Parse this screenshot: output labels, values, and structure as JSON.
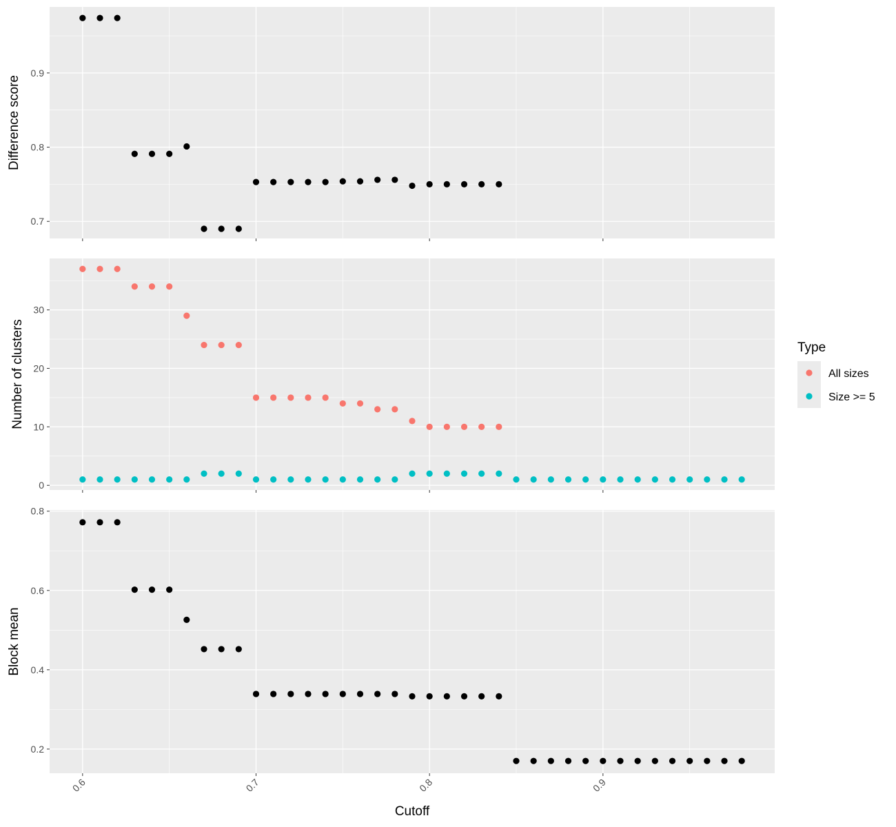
{
  "chart_data": [
    {
      "type": "scatter",
      "panel": "top",
      "ylabel": "Difference score",
      "xlim": [
        0.581,
        0.999
      ],
      "ylim": [
        0.677,
        0.989
      ],
      "yticks": [
        0.7,
        0.8,
        0.9
      ],
      "ytick_labels": [
        "0.7",
        "0.8",
        "0.9"
      ],
      "series": [
        {
          "name": "Difference score",
          "color": "#000000",
          "x": [
            0.6,
            0.61,
            0.62,
            0.63,
            0.64,
            0.65,
            0.66,
            0.67,
            0.68,
            0.69,
            0.7,
            0.71,
            0.72,
            0.73,
            0.74,
            0.75,
            0.76,
            0.77,
            0.78,
            0.79,
            0.8,
            0.81,
            0.82,
            0.83,
            0.84
          ],
          "y": [
            0.974,
            0.974,
            0.974,
            0.791,
            0.791,
            0.791,
            0.801,
            0.69,
            0.69,
            0.69,
            0.753,
            0.753,
            0.753,
            0.753,
            0.753,
            0.754,
            0.754,
            0.756,
            0.756,
            0.748,
            0.75,
            0.75,
            0.75,
            0.75,
            0.75
          ]
        }
      ]
    },
    {
      "type": "scatter",
      "panel": "middle",
      "ylabel": "Number of clusters",
      "xlim": [
        0.581,
        0.999
      ],
      "ylim": [
        -0.8,
        38.8
      ],
      "yticks": [
        0,
        10,
        20,
        30
      ],
      "ytick_labels": [
        "0",
        "10",
        "20",
        "30"
      ],
      "legend": {
        "title": "Type",
        "position": "right"
      },
      "series": [
        {
          "name": "All sizes",
          "color": "#F8766D",
          "x": [
            0.6,
            0.61,
            0.62,
            0.63,
            0.64,
            0.65,
            0.66,
            0.67,
            0.68,
            0.69,
            0.7,
            0.71,
            0.72,
            0.73,
            0.74,
            0.75,
            0.76,
            0.77,
            0.78,
            0.79,
            0.8,
            0.81,
            0.82,
            0.83,
            0.84
          ],
          "y": [
            37,
            37,
            37,
            34,
            34,
            34,
            29,
            24,
            24,
            24,
            15,
            15,
            15,
            15,
            15,
            14,
            14,
            13,
            13,
            11,
            10,
            10,
            10,
            10,
            10
          ]
        },
        {
          "name": "Size >= 5",
          "color": "#00BFC4",
          "x": [
            0.6,
            0.61,
            0.62,
            0.63,
            0.64,
            0.65,
            0.66,
            0.67,
            0.68,
            0.69,
            0.7,
            0.71,
            0.72,
            0.73,
            0.74,
            0.75,
            0.76,
            0.77,
            0.78,
            0.79,
            0.8,
            0.81,
            0.82,
            0.83,
            0.84,
            0.85,
            0.86,
            0.87,
            0.88,
            0.89,
            0.9,
            0.91,
            0.92,
            0.93,
            0.94,
            0.95,
            0.96,
            0.97,
            0.98
          ],
          "y": [
            1,
            1,
            1,
            1,
            1,
            1,
            1,
            2,
            2,
            2,
            1,
            1,
            1,
            1,
            1,
            1,
            1,
            1,
            1,
            2,
            2,
            2,
            2,
            2,
            2,
            1,
            1,
            1,
            1,
            1,
            1,
            1,
            1,
            1,
            1,
            1,
            1,
            1,
            1
          ]
        }
      ]
    },
    {
      "type": "scatter",
      "panel": "bottom",
      "ylabel": "Block mean",
      "xlabel": "Cutoff",
      "xlim": [
        0.581,
        0.999
      ],
      "ylim": [
        0.139,
        0.803
      ],
      "yticks": [
        0.2,
        0.4,
        0.6,
        0.8
      ],
      "ytick_labels": [
        "0.2",
        "0.4",
        "0.6",
        "0.8"
      ],
      "xticks": [
        0.6,
        0.7,
        0.8,
        0.9
      ],
      "xtick_labels": [
        "0.6",
        "0.7",
        "0.8",
        "0.9"
      ],
      "series": [
        {
          "name": "Block mean",
          "color": "#000000",
          "x": [
            0.6,
            0.61,
            0.62,
            0.63,
            0.64,
            0.65,
            0.66,
            0.67,
            0.68,
            0.69,
            0.7,
            0.71,
            0.72,
            0.73,
            0.74,
            0.75,
            0.76,
            0.77,
            0.78,
            0.79,
            0.8,
            0.81,
            0.82,
            0.83,
            0.84,
            0.85,
            0.86,
            0.87,
            0.88,
            0.89,
            0.9,
            0.91,
            0.92,
            0.93,
            0.94,
            0.95,
            0.96,
            0.97,
            0.98
          ],
          "y": [
            0.772,
            0.772,
            0.772,
            0.602,
            0.602,
            0.602,
            0.526,
            0.452,
            0.452,
            0.452,
            0.339,
            0.339,
            0.339,
            0.339,
            0.339,
            0.339,
            0.339,
            0.339,
            0.339,
            0.333,
            0.333,
            0.333,
            0.333,
            0.333,
            0.333,
            0.17,
            0.17,
            0.17,
            0.17,
            0.17,
            0.17,
            0.17,
            0.17,
            0.17,
            0.17,
            0.17,
            0.17,
            0.17,
            0.17
          ]
        }
      ]
    }
  ],
  "legend": {
    "title": "Type",
    "items": [
      {
        "label": "All sizes",
        "color": "#F8766D"
      },
      {
        "label": "Size >= 5",
        "color": "#00BFC4"
      }
    ]
  },
  "xlabel": "Cutoff",
  "colors": {
    "panel_bg": "#EBEBEB",
    "grid_major": "#FFFFFF"
  }
}
